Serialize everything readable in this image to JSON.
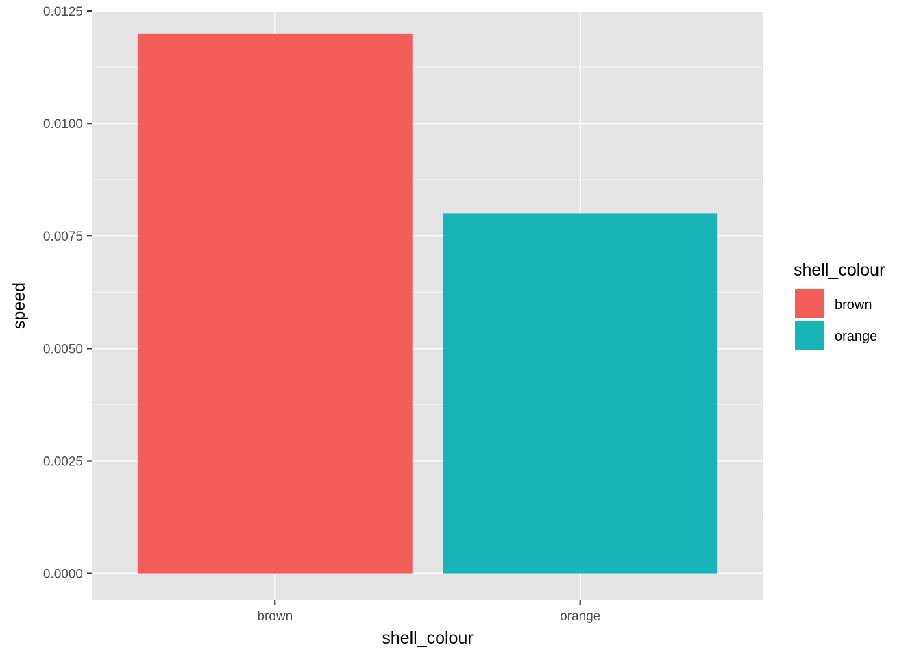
{
  "chart_data": {
    "type": "bar",
    "title": "",
    "xlabel": "shell_colour",
    "ylabel": "speed",
    "categories": [
      "brown",
      "orange"
    ],
    "values": [
      0.012,
      0.008
    ],
    "colors": [
      "#F35E5A",
      "#19B4B8"
    ],
    "ylim": [
      -0.0006,
      0.0125
    ],
    "yticks": [
      0.0,
      0.0025,
      0.005,
      0.0075,
      0.01,
      0.0125
    ],
    "ytick_labels": [
      "0.0000",
      "0.0025",
      "0.0050",
      "0.0075",
      "0.0100",
      "0.0125"
    ],
    "grid": true,
    "panel_background": "#E5E5E5",
    "legend": {
      "title": "shell_colour",
      "position": "right",
      "items": [
        {
          "label": "brown",
          "color": "#F35E5A"
        },
        {
          "label": "orange",
          "color": "#19B4B8"
        }
      ]
    }
  }
}
